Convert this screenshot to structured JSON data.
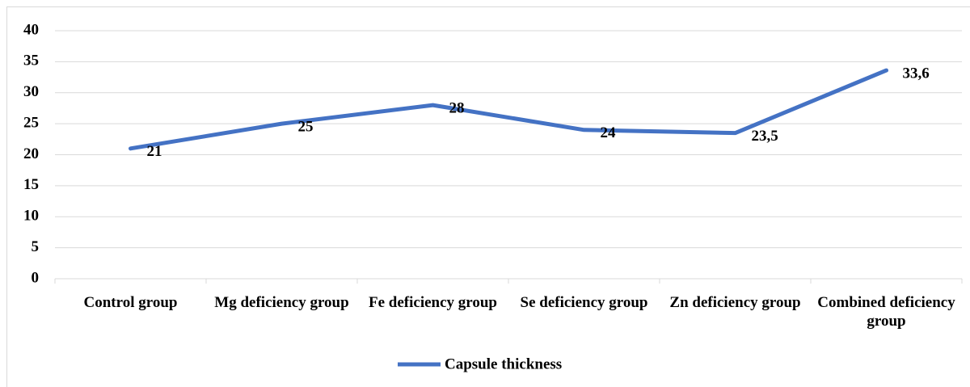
{
  "chart_data": {
    "type": "line",
    "categories": [
      "Control group",
      "Mg deficiency group",
      "Fe deficiency group",
      "Se deficiency group",
      "Zn deficiency group",
      "Combined deficiency group"
    ],
    "series": [
      {
        "name": "Capsule thickness",
        "color": "#4472c4",
        "values": [
          21,
          25,
          28,
          24,
          23.5,
          33.6
        ],
        "value_labels": [
          "21",
          "25",
          "28",
          "24",
          "23,5",
          "33,6"
        ]
      }
    ],
    "ylim": [
      0,
      40
    ],
    "yticks": [
      0,
      5,
      10,
      15,
      20,
      25,
      30,
      35,
      40
    ],
    "grid": true,
    "legend": "bottom"
  }
}
